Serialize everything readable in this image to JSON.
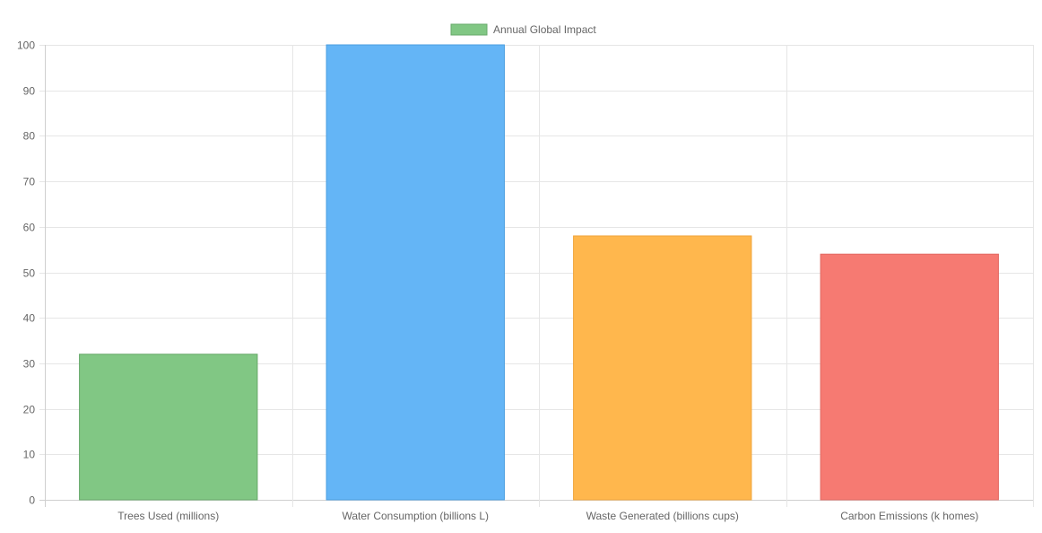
{
  "chart_data": {
    "type": "bar",
    "categories": [
      "Trees Used (millions)",
      "Water Consumption (billions L)",
      "Waste Generated (billions cups)",
      "Carbon Emissions (k homes)"
    ],
    "series": [
      {
        "name": "Annual Global Impact",
        "values": [
          32,
          100,
          58,
          54
        ]
      }
    ],
    "ylim": [
      0,
      100
    ],
    "yticks": [
      0,
      10,
      20,
      30,
      40,
      50,
      60,
      70,
      80,
      90,
      100
    ],
    "grid": true,
    "legend_position": "top",
    "legend_color": "#81c784",
    "bar_fill_colors": [
      "#81c784",
      "#64b5f6",
      "#ffb74d",
      "#f67a72"
    ],
    "bar_border_colors": [
      "#66a96a",
      "#4a9ee0",
      "#f0a43a",
      "#e26a63"
    ],
    "grid_color": "#e6e6e6",
    "axis_color": "#cfcfcf",
    "text_color": "#666666"
  }
}
